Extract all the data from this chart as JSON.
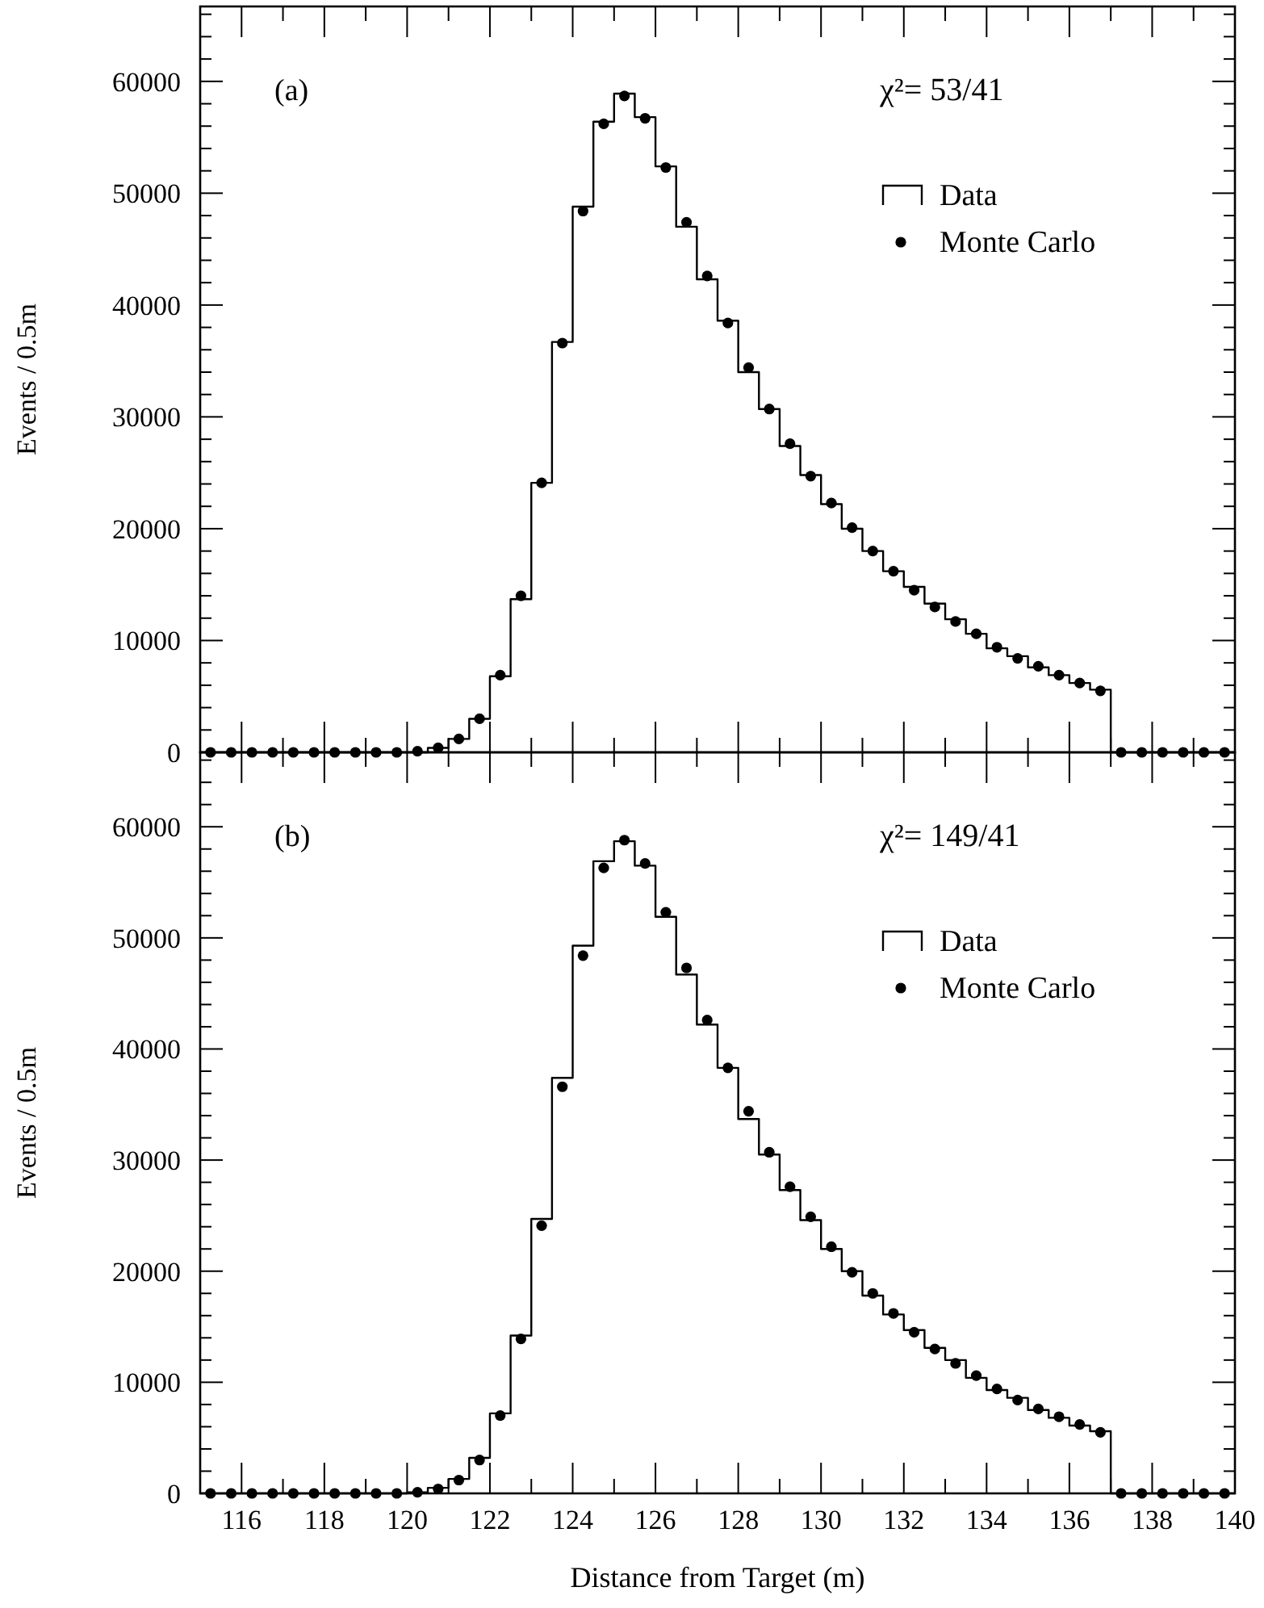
{
  "chart_data": [
    {
      "type": "histogram",
      "ylabel": "Events / 0.5m",
      "annotations": [
        "(a)",
        "χ²= 53/41"
      ],
      "legend": "top right",
      "grid": false,
      "marker": "circle",
      "tick_labels": "y",
      "bins": [
        115,
        115.5,
        116,
        116.5,
        117,
        117.5,
        118,
        118.5,
        119,
        119.5,
        120,
        120.5,
        121,
        121.5,
        122,
        122.5,
        123,
        123.5,
        124,
        124.5,
        125,
        125.5,
        126,
        126.5,
        127,
        127.5,
        128,
        128.5,
        129,
        129.5,
        130,
        130.5,
        131,
        131.5,
        132,
        132.5,
        133,
        133.5,
        134,
        134.5,
        135,
        135.5,
        136,
        136.5,
        137,
        137.5,
        138,
        138.5,
        139,
        139.5,
        140
      ],
      "xlim": [
        115,
        140
      ],
      "xticks": [
        {
          "value": 115,
          "label": null
        },
        116,
        {
          "value": 117,
          "label": null
        },
        118,
        {
          "value": 119,
          "label": null
        },
        120,
        {
          "value": 121,
          "label": null
        },
        122,
        {
          "value": 123,
          "label": null
        },
        124,
        {
          "value": 125,
          "label": null
        },
        126,
        {
          "value": 127,
          "label": null
        },
        128,
        {
          "value": 129,
          "label": null
        },
        130,
        {
          "value": 131,
          "label": null
        },
        132,
        {
          "value": 133,
          "label": null
        },
        134,
        {
          "value": 135,
          "label": null
        },
        136,
        {
          "value": 137,
          "label": null
        },
        138,
        {
          "value": 139,
          "label": null
        },
        140
      ],
      "ylim": [
        0,
        66700
      ],
      "yticks": [
        0,
        {
          "value": 2000,
          "label": null
        },
        {
          "value": 4000,
          "label": null
        },
        {
          "value": 6000,
          "label": null
        },
        {
          "value": 8000,
          "label": null
        },
        10000,
        {
          "value": 12000,
          "label": null
        },
        {
          "value": 14000,
          "label": null
        },
        {
          "value": 16000,
          "label": null
        },
        {
          "value": 18000,
          "label": null
        },
        20000,
        {
          "value": 22000,
          "label": null
        },
        {
          "value": 24000,
          "label": null
        },
        {
          "value": 26000,
          "label": null
        },
        {
          "value": 28000,
          "label": null
        },
        30000,
        {
          "value": 32000,
          "label": null
        },
        {
          "value": 34000,
          "label": null
        },
        {
          "value": 36000,
          "label": null
        },
        {
          "value": 38000,
          "label": null
        },
        40000,
        {
          "value": 42000,
          "label": null
        },
        {
          "value": 44000,
          "label": null
        },
        {
          "value": 46000,
          "label": null
        },
        {
          "value": 48000,
          "label": null
        },
        50000,
        {
          "value": 52000,
          "label": null
        },
        {
          "value": 54000,
          "label": null
        },
        {
          "value": 56000,
          "label": null
        },
        {
          "value": 58000,
          "label": null
        },
        60000,
        {
          "value": 62000,
          "label": null
        },
        {
          "value": 64000,
          "label": null
        },
        {
          "value": 66000,
          "label": null
        }
      ],
      "series": [
        {
          "name": "Data",
          "color": "#000000",
          "values": [
            0,
            0,
            0,
            0,
            0,
            0,
            0,
            0,
            0,
            0,
            0,
            400,
            1200,
            3000,
            6800,
            13700,
            24100,
            36700,
            48800,
            56400,
            58900,
            56800,
            52400,
            47000,
            42300,
            38600,
            34000,
            30700,
            27400,
            24800,
            22200,
            20000,
            18000,
            16200,
            14800,
            13300,
            11900,
            10600,
            9300,
            8600,
            7600,
            6900,
            6200,
            5600,
            0,
            0,
            0,
            0,
            0,
            0
          ]
        },
        {
          "name": "Monte Carlo",
          "type": "scatter",
          "color": "#000000",
          "x": [
            115.25,
            115.75,
            116.25,
            116.75,
            117.25,
            117.75,
            118.25,
            118.75,
            119.25,
            119.75,
            120.25,
            120.75,
            121.25,
            121.75,
            122.25,
            122.75,
            123.25,
            123.75,
            124.25,
            124.75,
            125.25,
            125.75,
            126.25,
            126.75,
            127.25,
            127.75,
            128.25,
            128.75,
            129.25,
            129.75,
            130.25,
            130.75,
            131.25,
            131.75,
            132.25,
            132.75,
            133.25,
            133.75,
            134.25,
            134.75,
            135.25,
            135.75,
            136.25,
            136.75,
            137.25,
            137.75,
            138.25,
            138.75,
            139.25,
            139.75
          ],
          "values": [
            0,
            0,
            0,
            0,
            0,
            0,
            0,
            0,
            0,
            0,
            100,
            400,
            1200,
            3000,
            6900,
            14000,
            24100,
            36600,
            48400,
            56200,
            58700,
            56700,
            52300,
            47400,
            42600,
            38400,
            34400,
            30700,
            27600,
            24700,
            22300,
            20100,
            18000,
            16200,
            14500,
            13000,
            11700,
            10600,
            9400,
            8400,
            7700,
            6900,
            6200,
            5500,
            0,
            0,
            0,
            0,
            0,
            0
          ]
        }
      ]
    },
    {
      "type": "histogram",
      "xlabel": "Distance from Target (m)",
      "ylabel": "Events / 0.5m",
      "annotations": [
        "(b)",
        "χ²= 149/41"
      ],
      "legend": "top right",
      "grid": false,
      "marker": "circle",
      "bins": [
        115,
        115.5,
        116,
        116.5,
        117,
        117.5,
        118,
        118.5,
        119,
        119.5,
        120,
        120.5,
        121,
        121.5,
        122,
        122.5,
        123,
        123.5,
        124,
        124.5,
        125,
        125.5,
        126,
        126.5,
        127,
        127.5,
        128,
        128.5,
        129,
        129.5,
        130,
        130.5,
        131,
        131.5,
        132,
        132.5,
        133,
        133.5,
        134,
        134.5,
        135,
        135.5,
        136,
        136.5,
        137,
        137.5,
        138,
        138.5,
        139,
        139.5,
        140
      ],
      "xlim": [
        115,
        140
      ],
      "xticks": [
        {
          "value": 115,
          "label": null
        },
        116,
        {
          "value": 117,
          "label": null
        },
        118,
        {
          "value": 119,
          "label": null
        },
        120,
        {
          "value": 121,
          "label": null
        },
        122,
        {
          "value": 123,
          "label": null
        },
        124,
        {
          "value": 125,
          "label": null
        },
        126,
        {
          "value": 127,
          "label": null
        },
        128,
        {
          "value": 129,
          "label": null
        },
        130,
        {
          "value": 131,
          "label": null
        },
        132,
        {
          "value": 133,
          "label": null
        },
        134,
        {
          "value": 135,
          "label": null
        },
        136,
        {
          "value": 137,
          "label": null
        },
        138,
        {
          "value": 139,
          "label": null
        },
        140
      ],
      "ylim": [
        0,
        66700
      ],
      "yticks": [
        0,
        {
          "value": 2000,
          "label": null
        },
        {
          "value": 4000,
          "label": null
        },
        {
          "value": 6000,
          "label": null
        },
        {
          "value": 8000,
          "label": null
        },
        10000,
        {
          "value": 12000,
          "label": null
        },
        {
          "value": 14000,
          "label": null
        },
        {
          "value": 16000,
          "label": null
        },
        {
          "value": 18000,
          "label": null
        },
        20000,
        {
          "value": 22000,
          "label": null
        },
        {
          "value": 24000,
          "label": null
        },
        {
          "value": 26000,
          "label": null
        },
        {
          "value": 28000,
          "label": null
        },
        30000,
        {
          "value": 32000,
          "label": null
        },
        {
          "value": 34000,
          "label": null
        },
        {
          "value": 36000,
          "label": null
        },
        {
          "value": 38000,
          "label": null
        },
        40000,
        {
          "value": 42000,
          "label": null
        },
        {
          "value": 44000,
          "label": null
        },
        {
          "value": 46000,
          "label": null
        },
        {
          "value": 48000,
          "label": null
        },
        50000,
        {
          "value": 52000,
          "label": null
        },
        {
          "value": 54000,
          "label": null
        },
        {
          "value": 56000,
          "label": null
        },
        {
          "value": 58000,
          "label": null
        },
        60000,
        {
          "value": 62000,
          "label": null
        },
        {
          "value": 64000,
          "label": null
        },
        {
          "value": 66000,
          "label": null
        }
      ],
      "series": [
        {
          "name": "Data",
          "color": "#000000",
          "values": [
            0,
            0,
            0,
            0,
            0,
            0,
            0,
            0,
            0,
            0,
            100,
            500,
            1300,
            3200,
            7200,
            14200,
            24700,
            37400,
            49300,
            56900,
            58700,
            56500,
            51900,
            46700,
            42200,
            38300,
            33700,
            30500,
            27300,
            24600,
            22000,
            20000,
            17800,
            16100,
            14700,
            13100,
            12000,
            10400,
            9300,
            8600,
            7500,
            6800,
            6100,
            5600,
            0,
            0,
            0,
            0,
            0,
            0
          ]
        },
        {
          "name": "Monte Carlo",
          "type": "scatter",
          "color": "#000000",
          "x": [
            115.25,
            115.75,
            116.25,
            116.75,
            117.25,
            117.75,
            118.25,
            118.75,
            119.25,
            119.75,
            120.25,
            120.75,
            121.25,
            121.75,
            122.25,
            122.75,
            123.25,
            123.75,
            124.25,
            124.75,
            125.25,
            125.75,
            126.25,
            126.75,
            127.25,
            127.75,
            128.25,
            128.75,
            129.25,
            129.75,
            130.25,
            130.75,
            131.25,
            131.75,
            132.25,
            132.75,
            133.25,
            133.75,
            134.25,
            134.75,
            135.25,
            135.75,
            136.25,
            136.75,
            137.25,
            137.75,
            138.25,
            138.75,
            139.25,
            139.75
          ],
          "values": [
            0,
            0,
            0,
            0,
            0,
            0,
            0,
            0,
            0,
            0,
            100,
            400,
            1200,
            3000,
            7000,
            13900,
            24100,
            36600,
            48400,
            56300,
            58800,
            56700,
            52300,
            47300,
            42600,
            38300,
            34400,
            30700,
            27600,
            24900,
            22200,
            19900,
            18000,
            16200,
            14500,
            13000,
            11700,
            10600,
            9400,
            8400,
            7600,
            6900,
            6200,
            5500,
            0,
            0,
            0,
            0,
            0,
            0
          ]
        }
      ]
    }
  ]
}
